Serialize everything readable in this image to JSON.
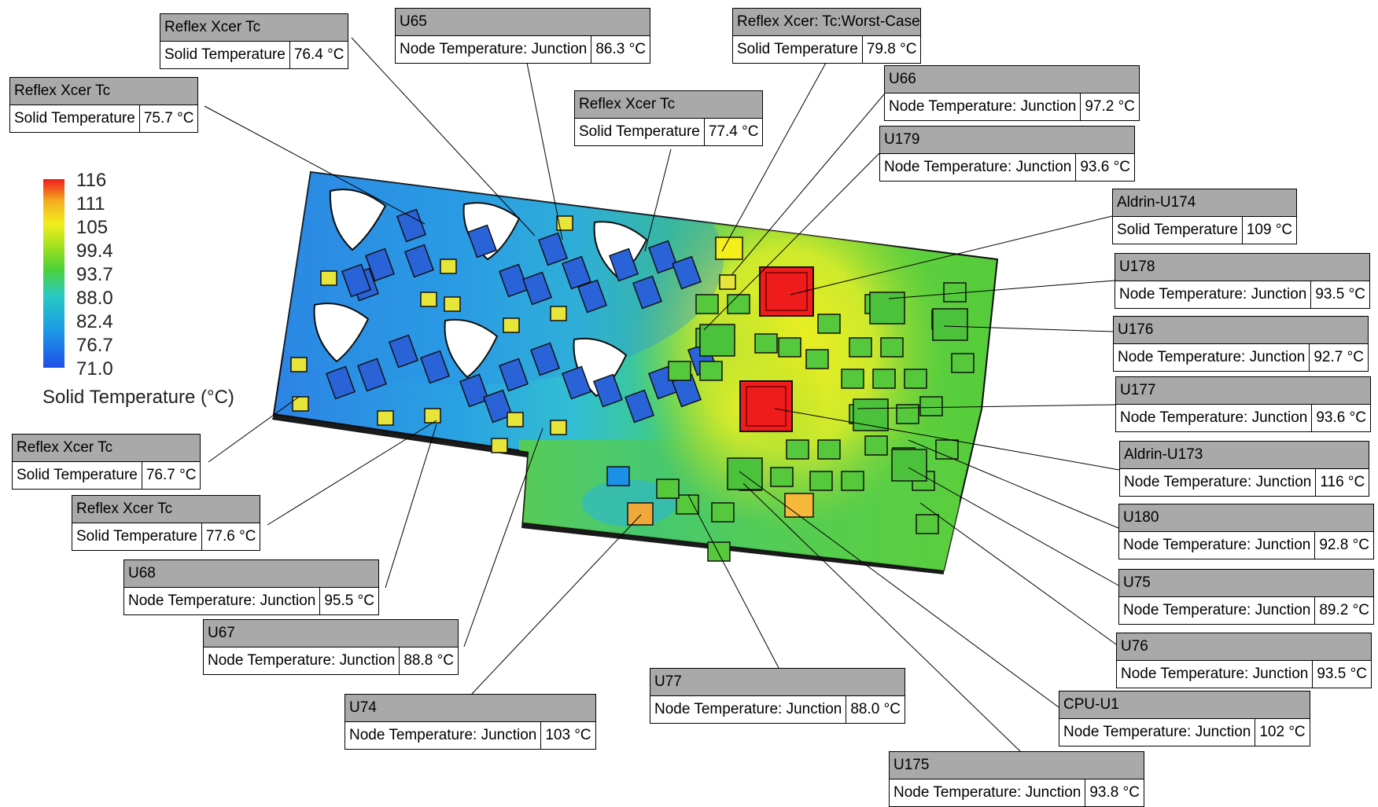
{
  "legend": {
    "ticks": [
      "116",
      "111",
      "105",
      "99.4",
      "93.7",
      "88.0",
      "82.4",
      "76.7",
      "71.0"
    ],
    "title": "Solid Temperature (°C)",
    "range": [
      71.0,
      116
    ],
    "colors": [
      "#1f4fe8",
      "#1c9be6",
      "#27c9c4",
      "#4cd137",
      "#9fe020",
      "#f0ee1c",
      "#f5b020",
      "#ee1c1c"
    ]
  },
  "probes": [
    {
      "name": "Reflex Xcer Tc",
      "quantity": "Solid Temperature",
      "value": "76.4 °C"
    },
    {
      "name": "Reflex Xcer Tc",
      "quantity": "Solid Temperature",
      "value": "75.7 °C"
    },
    {
      "name": "U65",
      "quantity": "Node Temperature: Junction",
      "value": "86.3 °C"
    },
    {
      "name": "Reflex Xcer Tc",
      "quantity": "Solid Temperature",
      "value": "77.4 °C"
    },
    {
      "name": "Reflex Xcer: Tc:Worst-Case",
      "quantity": "Solid Temperature",
      "value": "79.8 °C"
    },
    {
      "name": "U66",
      "quantity": "Node Temperature: Junction",
      "value": "97.2 °C"
    },
    {
      "name": "U179",
      "quantity": "Node Temperature: Junction",
      "value": "93.6 °C"
    },
    {
      "name": "Aldrin-U174",
      "quantity": "Solid Temperature",
      "value": "109 °C"
    },
    {
      "name": "U178",
      "quantity": "Node Temperature: Junction",
      "value": "93.5 °C"
    },
    {
      "name": "U176",
      "quantity": "Node Temperature: Junction",
      "value": "92.7 °C"
    },
    {
      "name": "U177",
      "quantity": "Node Temperature: Junction",
      "value": "93.6 °C"
    },
    {
      "name": "Aldrin-U173",
      "quantity": "Node Temperature: Junction",
      "value": "116 °C"
    },
    {
      "name": "U180",
      "quantity": "Node Temperature: Junction",
      "value": "92.8 °C"
    },
    {
      "name": "U75",
      "quantity": "Node Temperature: Junction",
      "value": "89.2 °C"
    },
    {
      "name": "U76",
      "quantity": "Node Temperature: Junction",
      "value": "93.5 °C"
    },
    {
      "name": "CPU-U1",
      "quantity": "Node Temperature: Junction",
      "value": "102 °C"
    },
    {
      "name": "U175",
      "quantity": "Node Temperature: Junction",
      "value": "93.8 °C"
    },
    {
      "name": "U77",
      "quantity": "Node Temperature: Junction",
      "value": "88.0 °C"
    },
    {
      "name": "U74",
      "quantity": "Node Temperature: Junction",
      "value": "103 °C"
    },
    {
      "name": "U67",
      "quantity": "Node Temperature: Junction",
      "value": "88.8 °C"
    },
    {
      "name": "U68",
      "quantity": "Node Temperature: Junction",
      "value": "95.5 °C"
    },
    {
      "name": "Reflex Xcer Tc",
      "quantity": "Solid Temperature",
      "value": "77.6 °C"
    },
    {
      "name": "Reflex Xcer Tc",
      "quantity": "Solid Temperature",
      "value": "76.7 °C"
    }
  ]
}
